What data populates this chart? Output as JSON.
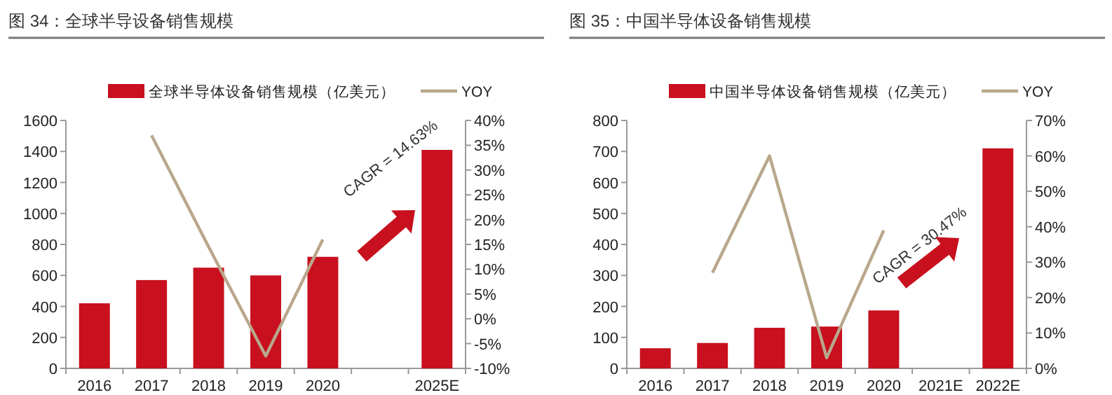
{
  "chart_data": [
    {
      "type": "bar",
      "title": "图 34：全球半导设备销售规模",
      "categories": [
        "2016",
        "2017",
        "2018",
        "2019",
        "2020",
        null,
        "2025E"
      ],
      "series": [
        {
          "name": "全球半导体设备销售规模（亿美元）",
          "color": "#c8101e",
          "values": [
            420,
            570,
            650,
            600,
            720,
            null,
            1410
          ]
        },
        {
          "name": "YOY",
          "type": "line",
          "color": "#b9a78c",
          "axis": "y2",
          "values": [
            null,
            37,
            14.5,
            -7.5,
            16,
            null,
            null
          ]
        }
      ],
      "ylim": [
        0,
        1600
      ],
      "yticks": [
        0,
        200,
        400,
        600,
        800,
        1000,
        1200,
        1400,
        1600
      ],
      "y2lim": [
        -10,
        40
      ],
      "y2ticks": [
        {
          "value": -10,
          "label": "-10%"
        },
        {
          "value": -5,
          "label": "-5%"
        },
        {
          "value": 0,
          "label": "0%"
        },
        {
          "value": 5,
          "label": "5%"
        },
        {
          "value": 10,
          "label": "10%"
        },
        {
          "value": 15,
          "label": "15%"
        },
        {
          "value": 20,
          "label": "20%"
        },
        {
          "value": 25,
          "label": "25%"
        },
        {
          "value": 30,
          "label": "30%"
        },
        {
          "value": 35,
          "label": "35%"
        },
        {
          "value": 40,
          "label": "40%"
        }
      ],
      "legend": "top",
      "grid": false,
      "annotations": [
        "CAGR = 14.63%"
      ]
    },
    {
      "type": "bar",
      "title": "图 35：中国半导体设备销售规模",
      "categories": [
        "2016",
        "2017",
        "2018",
        "2019",
        "2020",
        "2021E",
        "2022E"
      ],
      "series": [
        {
          "name": "中国半导体设备销售规模（亿美元）",
          "color": "#c8101e",
          "values": [
            65,
            82,
            131,
            135,
            187,
            null,
            710
          ]
        },
        {
          "name": "YOY",
          "type": "line",
          "color": "#b9a78c",
          "axis": "y2",
          "values": [
            null,
            27,
            60,
            3,
            39,
            null,
            null
          ]
        }
      ],
      "ylim": [
        0,
        800
      ],
      "yticks": [
        0,
        100,
        200,
        300,
        400,
        500,
        600,
        700,
        800
      ],
      "y2lim": [
        0,
        70
      ],
      "y2ticks": [
        {
          "value": 0,
          "label": "0%"
        },
        {
          "value": 10,
          "label": "10%"
        },
        {
          "value": 20,
          "label": "20%"
        },
        {
          "value": 30,
          "label": "30%"
        },
        {
          "value": 40,
          "label": "40%"
        },
        {
          "value": 50,
          "label": "50%"
        },
        {
          "value": 60,
          "label": "60%"
        },
        {
          "value": 70,
          "label": "70%"
        }
      ],
      "legend": "top",
      "grid": false,
      "annotations": [
        "CAGR = 30.47%"
      ]
    }
  ]
}
